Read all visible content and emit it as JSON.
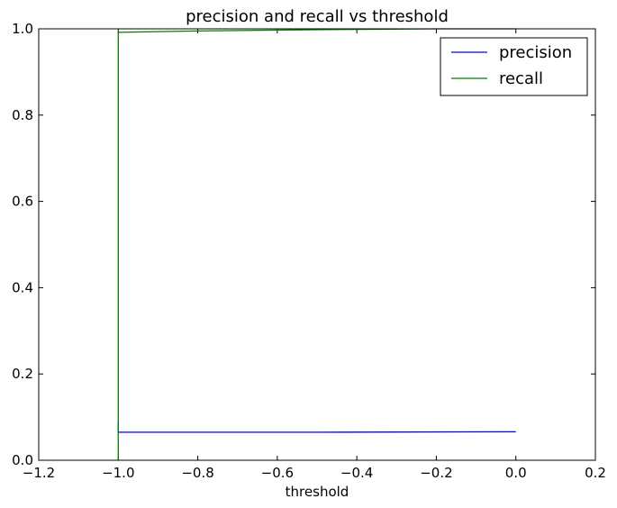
{
  "chart_data": {
    "type": "line",
    "title": "precision and recall vs threshold",
    "xlabel": "threshold",
    "ylabel": "",
    "xlim": [
      -1.2,
      0.2
    ],
    "ylim": [
      0.0,
      1.0
    ],
    "xticks": [
      -1.2,
      -1.0,
      -0.8,
      -0.6,
      -0.4,
      -0.2,
      0.0,
      0.2
    ],
    "xtick_labels": [
      "−1.2",
      "−1.0",
      "−0.8",
      "−0.6",
      "−0.4",
      "−0.2",
      "0.0",
      "0.2"
    ],
    "yticks": [
      0.0,
      0.2,
      0.4,
      0.6,
      0.8,
      1.0
    ],
    "ytick_labels": [
      "0.0",
      "0.2",
      "0.4",
      "0.6",
      "0.8",
      "1.0"
    ],
    "grid": false,
    "legend_position": "top-right",
    "series": [
      {
        "name": "precision",
        "color": "#0000ff",
        "x": [
          -1.0,
          -1.0,
          -1.0,
          -0.5,
          0.0
        ],
        "y": [
          0.09,
          0.075,
          0.065,
          0.065,
          0.066
        ]
      },
      {
        "name": "recall",
        "color": "#008000",
        "x": [
          -1.0,
          -1.0,
          -1.0,
          -0.8,
          -0.5,
          -0.2,
          0.0
        ],
        "y": [
          0.0,
          0.5,
          0.992,
          0.995,
          0.998,
          1.0,
          1.0
        ]
      }
    ]
  }
}
